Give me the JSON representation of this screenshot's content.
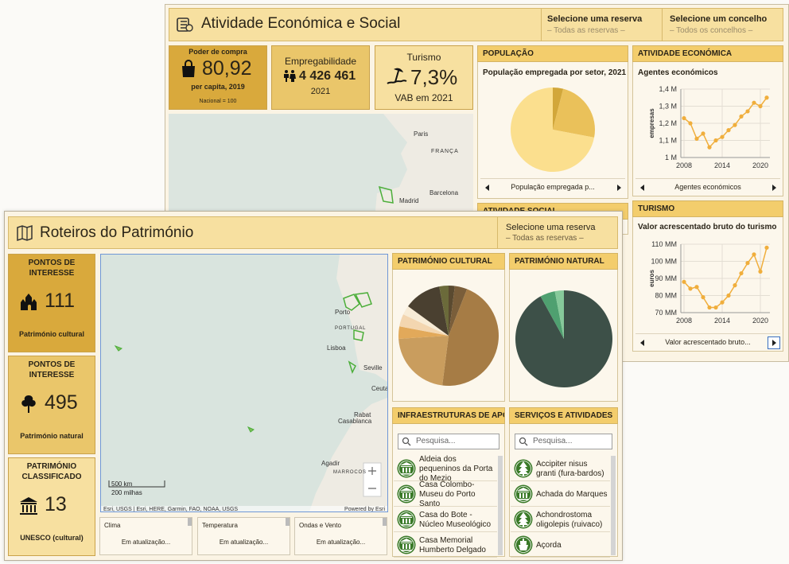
{
  "back": {
    "title": "Atividade Económica e Social",
    "selectors": [
      {
        "label": "Selecione uma reserva",
        "value": "– Todas as reservas –"
      },
      {
        "label": "Selecione um concelho",
        "value": "– Todos os concelhos –"
      }
    ],
    "kpis": [
      {
        "title": "Poder de compra",
        "value": "80,92",
        "subtitle": "per capita, 2019",
        "note": "Nacional = 100"
      },
      {
        "title": "Empregabilidade",
        "value": "4 426 461",
        "subtitle": "2021"
      },
      {
        "title": "Turismo",
        "value": "7,3%",
        "subtitle": "VAB em 2021"
      }
    ],
    "map_labels": [
      "Paris",
      "FRANÇA",
      "Barcelona",
      "Madrid"
    ],
    "cards": [
      {
        "header": "POPULAÇÃO",
        "footer": "População empregada p..."
      },
      {
        "header": "ATIVIDADE ECONÓMICA",
        "footer": "Agentes económicos"
      },
      {
        "header": "TURISMO",
        "footer": "Valor acrescentado bruto..."
      },
      {
        "header": "ATIVIDADE SOCIAL"
      }
    ]
  },
  "front": {
    "title": "Roteiros do Património",
    "selector": {
      "label": "Selecione uma reserva",
      "value": "– Todas as reservas –"
    },
    "kpis": [
      {
        "title": "PONTOS DE INTERESSE",
        "value": "111",
        "subtitle": "Património cultural"
      },
      {
        "title": "PONTOS DE INTERESSE",
        "value": "495",
        "subtitle": "Património natural"
      },
      {
        "title": "PATRIMÓNIO CLASSIFICADO",
        "value": "13",
        "subtitle": "UNESCO (cultural)"
      }
    ],
    "map_labels": [
      "Porto",
      "PORTUGAL",
      "Lisboa",
      "Seville",
      "Ceuta",
      "Rabat",
      "Casablanca",
      "Agadir",
      "MARROCOS"
    ],
    "map_scale": [
      "500 km",
      "200 milhas"
    ],
    "map_attribution": "Esri, USGS | Esri, HERE, Garmin, FAO, NOAA, USGS",
    "map_powered": "Powered by Esri",
    "weather": [
      {
        "title": "Clima",
        "status": "Em atualização..."
      },
      {
        "title": "Temperatura",
        "status": "Em atualização..."
      },
      {
        "title": "Ondas e Vento",
        "status": "Em atualização..."
      }
    ],
    "cards": [
      {
        "header": "PATRIMÓNIO CULTURAL"
      },
      {
        "header": "PATRIMÓNIO NATURAL"
      }
    ],
    "lists": [
      {
        "header": "INFRAESTRUTURAS DE APOIO",
        "search": "Pesquisa...",
        "items": [
          "Aldeia dos pequeninos da Porta do Mezio",
          "Casa Colombo-Museu do Porto Santo",
          "Casa do Bote - Núcleo Museológico",
          "Casa Memorial Humberto Delgado"
        ]
      },
      {
        "header": "SERVIÇOS E ATIVIDADES",
        "search": "Pesquisa...",
        "items": [
          "Accipiter nisus granti (fura-bardos)",
          "Achada do Marques",
          "Achondrostoma oligolepis (ruivaco)",
          "Açorda"
        ]
      }
    ]
  },
  "chart_data": [
    {
      "type": "pie",
      "title": "População empregada por setor, 2021",
      "values": [
        4,
        24,
        72
      ],
      "colors": [
        "#d2a73a",
        "#eac15a",
        "#fbdf8e"
      ]
    },
    {
      "type": "line",
      "title": "Agentes económicos",
      "ylabel": "empresas",
      "x": [
        2008,
        2009,
        2010,
        2011,
        2012,
        2013,
        2014,
        2015,
        2016,
        2017,
        2018,
        2019,
        2020,
        2021
      ],
      "values": [
        1.23,
        1.2,
        1.11,
        1.14,
        1.06,
        1.1,
        1.12,
        1.16,
        1.19,
        1.24,
        1.27,
        1.32,
        1.3,
        1.35
      ],
      "color": "#f0ae3c",
      "xlim": [
        2007.5,
        2021.5
      ],
      "xticks": [
        2008,
        2014,
        2020
      ],
      "ylim": [
        1,
        1.4
      ],
      "yticks": [
        {
          "value": 1,
          "label": "1 M"
        },
        {
          "value": 1.1,
          "label": "1,1 M"
        },
        {
          "value": 1.2,
          "label": "1,2 M"
        },
        {
          "value": 1.3,
          "label": "1,3 M"
        },
        {
          "value": 1.4,
          "label": "1,4 M"
        }
      ],
      "grid": true
    },
    {
      "type": "line",
      "title": "Valor acrescentado bruto do turismo",
      "ylabel": "euros",
      "x": [
        2008,
        2009,
        2010,
        2011,
        2012,
        2013,
        2014,
        2015,
        2016,
        2017,
        2018,
        2019,
        2020,
        2021
      ],
      "values": [
        88,
        84,
        85,
        79,
        73,
        73,
        76,
        80,
        86,
        93,
        99,
        104,
        94,
        108
      ],
      "color": "#f0ae3c",
      "xlim": [
        2007.5,
        2021.5
      ],
      "xticks": [
        2008,
        2014,
        2020
      ],
      "ylim": [
        70,
        110
      ],
      "yticks": [
        {
          "value": 70,
          "label": "70 MM"
        },
        {
          "value": 80,
          "label": "80 MM"
        },
        {
          "value": 90,
          "label": "90 MM"
        },
        {
          "value": 100,
          "label": "100 MM"
        },
        {
          "value": 110,
          "label": "110 MM"
        }
      ],
      "grid": true
    },
    {
      "type": "pie",
      "title": "PATRIMÓNIO CULTURAL",
      "values": [
        2,
        4,
        46,
        22,
        4,
        4,
        3,
        12,
        3
      ],
      "colors": [
        "#5a4a30",
        "#7a5e3a",
        "#a67c45",
        "#c99d5e",
        "#e2a95a",
        "#f3d6b0",
        "#f8ecd6",
        "#4a4030",
        "#6b6a3a"
      ]
    },
    {
      "type": "pie",
      "title": "PATRIMÓNIO NATURAL",
      "values": [
        92,
        5,
        3
      ],
      "colors": [
        "#3d5048",
        "#4fa070",
        "#86c99a"
      ]
    }
  ]
}
